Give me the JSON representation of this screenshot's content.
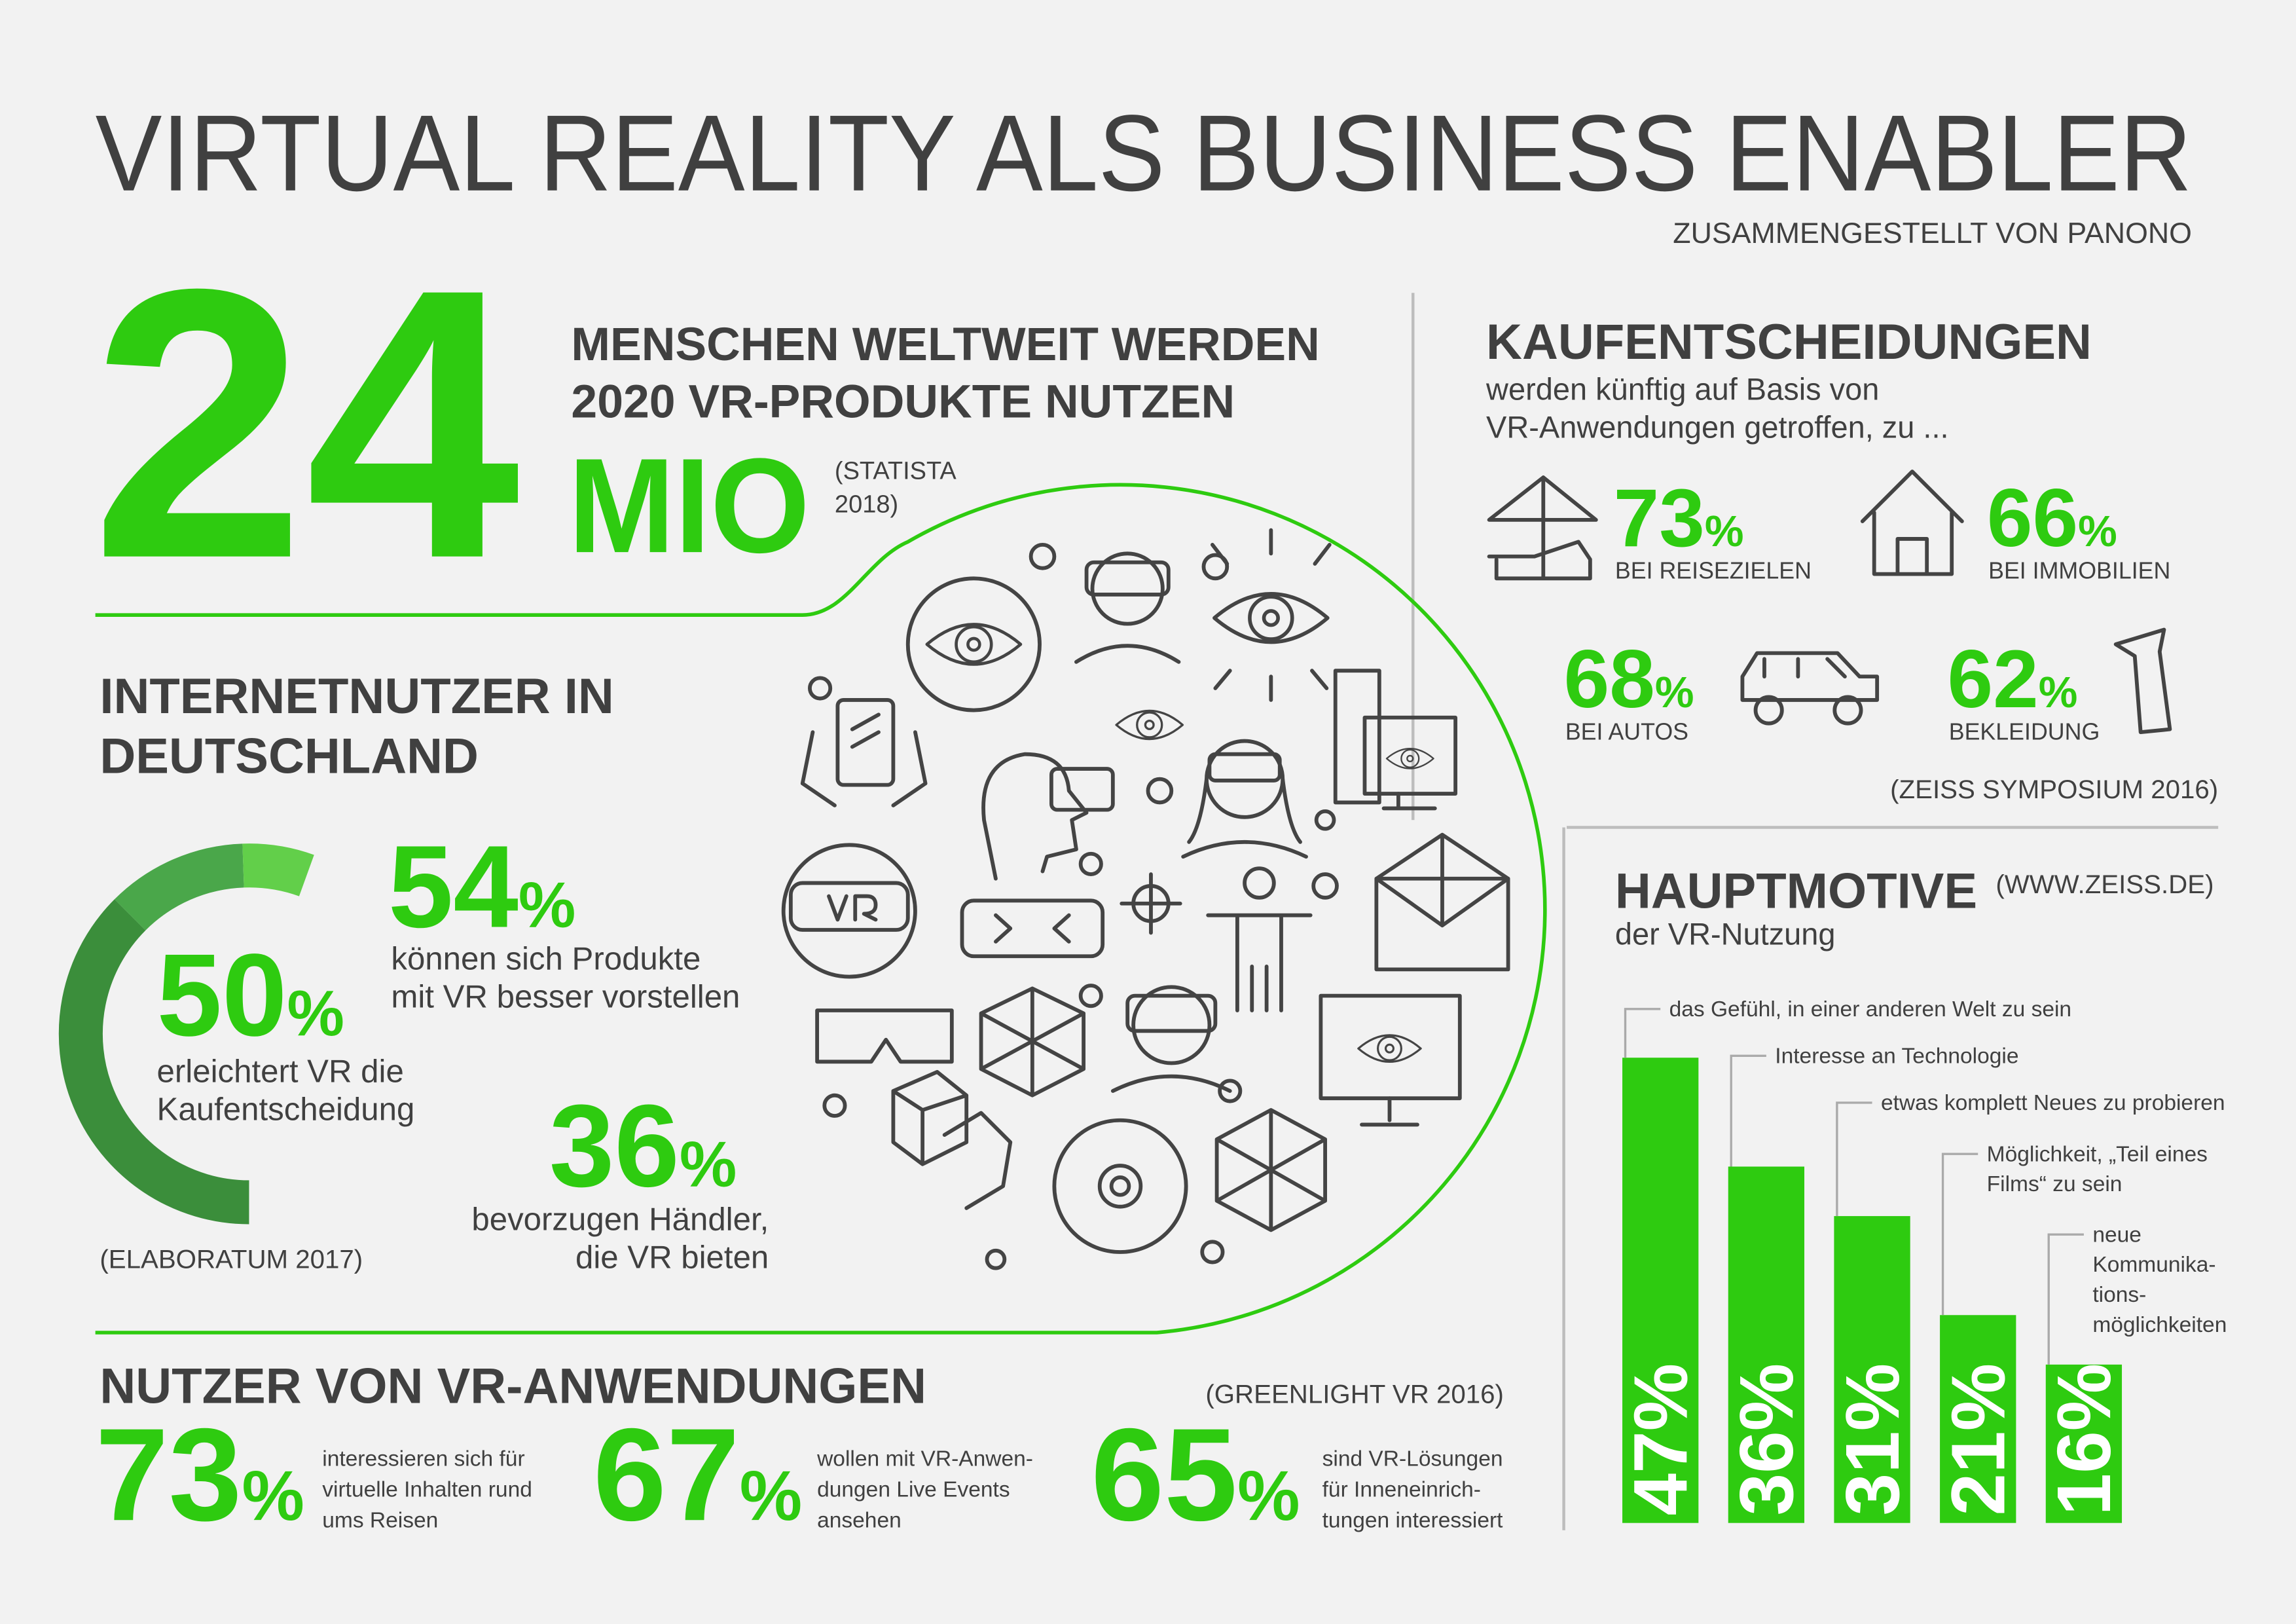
{
  "header": {
    "title": "VIRTUAL REALITY ALS BUSINESS ENABLER",
    "subtitle": "ZUSAMMENGESTELLT VON PANONO"
  },
  "hero": {
    "number": "24",
    "unit": "MIO",
    "lines": [
      "MENSCHEN WELTWEIT WERDEN",
      "2020 VR-PRODUKTE NUTZEN"
    ],
    "source": [
      "(STATISTA",
      "2018)"
    ]
  },
  "purchase": {
    "title": "KAUFENTSCHEIDUNGEN",
    "intro": [
      "werden künftig auf Basis von",
      "VR-Anwendungen getroffen, zu ..."
    ],
    "items": [
      {
        "number": "73",
        "unit": "%",
        "label": "BEI REISEZIELEN"
      },
      {
        "number": "66",
        "unit": "%",
        "label": "BEI IMMOBILIEN"
      },
      {
        "number": "68",
        "unit": "%",
        "label": "BEI AUTOS"
      },
      {
        "number": "62",
        "unit": "%",
        "label": "BEKLEIDUNG"
      }
    ],
    "source": "(ZEISS SYMPOSIUM 2016)"
  },
  "motives": {
    "title": "HAUPTMOTIVE",
    "subtitle": "der VR-Nutzung",
    "source": "(WWW.ZEISS.DE)",
    "bars": [
      {
        "value": 47,
        "value_label": "47%",
        "label": [
          "das Gefühl, in einer anderen Welt zu sein"
        ]
      },
      {
        "value": 36,
        "value_label": "36%",
        "label": [
          "Interesse an Technologie"
        ]
      },
      {
        "value": 31,
        "value_label": "31%",
        "label": [
          "etwas komplett Neues zu probieren"
        ]
      },
      {
        "value": 21,
        "value_label": "21%",
        "label": [
          "Möglichkeit, „Teil eines",
          "Films“ zu sein"
        ]
      },
      {
        "value": 16,
        "value_label": "16%",
        "label": [
          "neue",
          "Kommunika-",
          "tions-",
          "möglichkeiten"
        ]
      }
    ]
  },
  "internet": {
    "title": [
      "INTERNETNUTZER IN",
      "DEUTSCHLAND"
    ],
    "stats": [
      {
        "number": "54",
        "unit": "%",
        "text": [
          "können sich Produkte",
          "mit VR besser vorstellen"
        ]
      },
      {
        "number": "50",
        "unit": "%",
        "text": [
          "erleichtert VR die",
          "Kaufentscheidung"
        ]
      },
      {
        "number": "36",
        "unit": "%",
        "text": [
          "bevorzugen Händler,",
          "die VR bieten"
        ]
      }
    ],
    "source": "(ELABORATUM 2017)"
  },
  "users": {
    "title": "NUTZER VON VR-ANWENDUNGEN",
    "source": "(GREENLIGHT VR 2016)",
    "stats": [
      {
        "number": "73",
        "unit": "%",
        "text": [
          "interessieren sich für",
          "virtuelle Inhalten rund",
          "ums Reisen"
        ]
      },
      {
        "number": "67",
        "unit": "%",
        "text": [
          "wollen mit VR-Anwen-",
          "dungen Live Events",
          "ansehen"
        ]
      },
      {
        "number": "65",
        "unit": "%",
        "text": [
          "sind VR-Lösungen",
          "für Inneneinrich-",
          "tungen interessiert"
        ]
      }
    ]
  }
}
